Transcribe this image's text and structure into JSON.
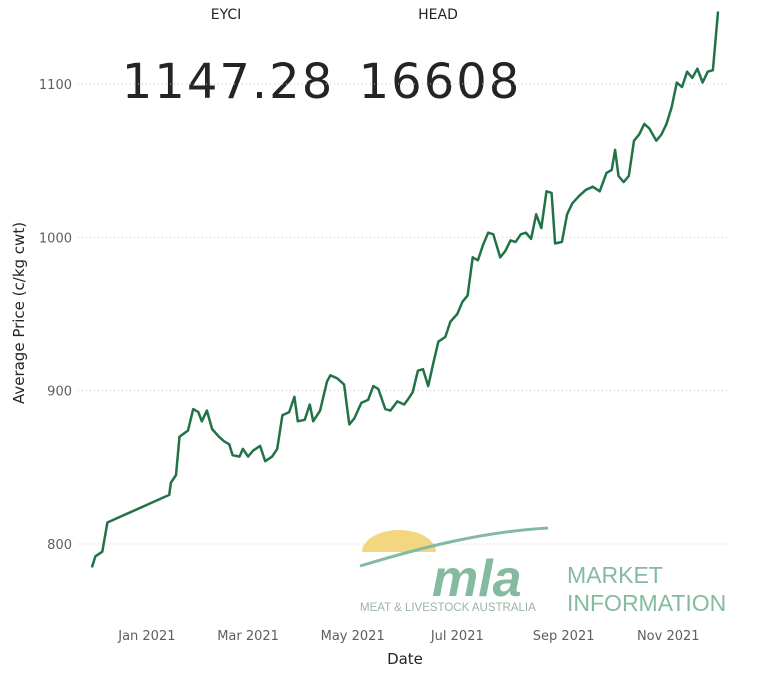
{
  "kpis": [
    {
      "label": "EYCI",
      "value": "1147.28"
    },
    {
      "label": "HEAD",
      "value": "16608"
    }
  ],
  "branding": {
    "wordmark": "mla",
    "tagline": "MEAT & LIVESTOCK AUSTRALIA",
    "market_line1": "MARKET",
    "market_line2": "INFORMATION",
    "sun_color": "#f0cf6a",
    "brand_green": "#6fae8f"
  },
  "chart_data": {
    "type": "line",
    "xlabel": "Date",
    "ylabel": "Average Price (c/kg cwt)",
    "ylim": [
      780,
      1150
    ],
    "y_ticks": [
      800,
      900,
      1000,
      1100
    ],
    "x_ticks": [
      {
        "label": "Jan 2021",
        "date": "2021-01-01"
      },
      {
        "label": "Mar 2021",
        "date": "2021-03-01"
      },
      {
        "label": "May 2021",
        "date": "2021-05-01"
      },
      {
        "label": "Jul 2021",
        "date": "2021-07-01"
      },
      {
        "label": "Sep 2021",
        "date": "2021-09-01"
      },
      {
        "label": "Nov 2021",
        "date": "2021-11-01"
      }
    ],
    "x_range": [
      "2020-12-01",
      "2021-12-31"
    ],
    "grid": true,
    "line_color": "#217346",
    "series": [
      {
        "points": [
          [
            "2020-12-07",
            785
          ],
          [
            "2020-12-09",
            792
          ],
          [
            "2020-12-13",
            795
          ],
          [
            "2020-12-16",
            814
          ],
          [
            "2021-01-21",
            832
          ],
          [
            "2021-01-22",
            840
          ],
          [
            "2021-01-25",
            845
          ],
          [
            "2021-01-27",
            870
          ],
          [
            "2021-02-01",
            874
          ],
          [
            "2021-02-04",
            888
          ],
          [
            "2021-02-07",
            886
          ],
          [
            "2021-02-09",
            880
          ],
          [
            "2021-02-12",
            887
          ],
          [
            "2021-02-15",
            875
          ],
          [
            "2021-02-19",
            870
          ],
          [
            "2021-02-22",
            867
          ],
          [
            "2021-02-25",
            865
          ],
          [
            "2021-02-27",
            858
          ],
          [
            "2021-03-03",
            857
          ],
          [
            "2021-03-05",
            862
          ],
          [
            "2021-03-08",
            857
          ],
          [
            "2021-03-11",
            861
          ],
          [
            "2021-03-15",
            864
          ],
          [
            "2021-03-18",
            854
          ],
          [
            "2021-03-22",
            857
          ],
          [
            "2021-03-25",
            862
          ],
          [
            "2021-03-28",
            884
          ],
          [
            "2021-04-01",
            886
          ],
          [
            "2021-04-04",
            896
          ],
          [
            "2021-04-06",
            880
          ],
          [
            "2021-04-10",
            881
          ],
          [
            "2021-04-13",
            891
          ],
          [
            "2021-04-15",
            880
          ],
          [
            "2021-04-19",
            887
          ],
          [
            "2021-04-23",
            906
          ],
          [
            "2021-04-25",
            910
          ],
          [
            "2021-04-29",
            908
          ],
          [
            "2021-05-03",
            904
          ],
          [
            "2021-05-06",
            878
          ],
          [
            "2021-05-09",
            882
          ],
          [
            "2021-05-13",
            892
          ],
          [
            "2021-05-17",
            894
          ],
          [
            "2021-05-20",
            903
          ],
          [
            "2021-05-23",
            901
          ],
          [
            "2021-05-27",
            888
          ],
          [
            "2021-05-30",
            887
          ],
          [
            "2021-06-03",
            893
          ],
          [
            "2021-06-07",
            891
          ],
          [
            "2021-06-09",
            894
          ],
          [
            "2021-06-12",
            899
          ],
          [
            "2021-06-15",
            913
          ],
          [
            "2021-06-18",
            914
          ],
          [
            "2021-06-21",
            903
          ],
          [
            "2021-06-24",
            918
          ],
          [
            "2021-06-27",
            932
          ],
          [
            "2021-07-01",
            935
          ],
          [
            "2021-07-04",
            945
          ],
          [
            "2021-07-08",
            950
          ],
          [
            "2021-07-11",
            958
          ],
          [
            "2021-07-14",
            962
          ],
          [
            "2021-07-17",
            987
          ],
          [
            "2021-07-20",
            985
          ],
          [
            "2021-07-23",
            995
          ],
          [
            "2021-07-26",
            1003
          ],
          [
            "2021-07-29",
            1002
          ],
          [
            "2021-08-02",
            987
          ],
          [
            "2021-08-05",
            991
          ],
          [
            "2021-08-08",
            998
          ],
          [
            "2021-08-11",
            997
          ],
          [
            "2021-08-14",
            1002
          ],
          [
            "2021-08-17",
            1003
          ],
          [
            "2021-08-20",
            999
          ],
          [
            "2021-08-23",
            1015
          ],
          [
            "2021-08-26",
            1006
          ],
          [
            "2021-08-29",
            1030
          ],
          [
            "2021-09-01",
            1029
          ],
          [
            "2021-09-03",
            996
          ],
          [
            "2021-09-07",
            997
          ],
          [
            "2021-09-10",
            1015
          ],
          [
            "2021-09-13",
            1022
          ],
          [
            "2021-09-17",
            1027
          ],
          [
            "2021-09-21",
            1031
          ],
          [
            "2021-09-25",
            1033
          ],
          [
            "2021-09-29",
            1030
          ],
          [
            "2021-10-03",
            1042
          ],
          [
            "2021-10-06",
            1044
          ],
          [
            "2021-10-08",
            1057
          ],
          [
            "2021-10-10",
            1040
          ],
          [
            "2021-10-13",
            1036
          ],
          [
            "2021-10-16",
            1040
          ],
          [
            "2021-10-19",
            1063
          ],
          [
            "2021-10-22",
            1067
          ],
          [
            "2021-10-25",
            1074
          ],
          [
            "2021-10-28",
            1071
          ],
          [
            "2021-11-01",
            1063
          ],
          [
            "2021-11-04",
            1067
          ],
          [
            "2021-11-07",
            1074
          ],
          [
            "2021-11-10",
            1085
          ],
          [
            "2021-11-13",
            1101
          ],
          [
            "2021-11-16",
            1098
          ],
          [
            "2021-11-19",
            1108
          ],
          [
            "2021-11-22",
            1104
          ],
          [
            "2021-11-25",
            1110
          ],
          [
            "2021-11-28",
            1101
          ],
          [
            "2021-12-01",
            1108
          ],
          [
            "2021-12-04",
            1109
          ],
          [
            "2021-12-07",
            1147
          ]
        ]
      }
    ]
  }
}
